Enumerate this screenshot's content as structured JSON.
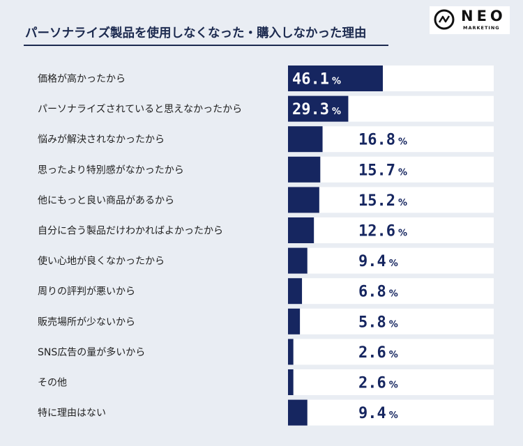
{
  "header": {
    "title": "パーソナライズ製品を使用しなくなった・購入しなかった理由",
    "logo_word": "NEO",
    "logo_sub": "MARKETING"
  },
  "colors": {
    "bar": "#162660",
    "track": "#ffffff",
    "background": "#e9edf3",
    "text_dark": "#1c2a4f"
  },
  "chart_data": {
    "type": "bar",
    "orientation": "horizontal",
    "categories": [
      "価格が高かったから",
      "パーソナライズされていると思えなかったから",
      "悩みが解決されなかったから",
      "思ったより特別感がなかったから",
      "他にもっと良い商品があるから",
      "自分に合う製品だけわかればよかったから",
      "使い心地が良くなかったから",
      "周りの評判が悪いから",
      "販売場所が少ないから",
      "SNS広告の量が多いから",
      "その他",
      "特に理由はない"
    ],
    "values": [
      46.1,
      29.3,
      16.8,
      15.7,
      15.2,
      12.6,
      9.4,
      6.8,
      5.8,
      2.6,
      2.6,
      9.4
    ],
    "value_labels": [
      "46.1",
      "29.3",
      "16.8",
      "15.7",
      "15.2",
      "12.6",
      "9.4",
      "6.8",
      "5.8",
      "2.6",
      "2.6",
      "9.4"
    ],
    "unit": "%",
    "xlim": [
      0,
      100
    ],
    "grid": false,
    "legend": "none"
  }
}
